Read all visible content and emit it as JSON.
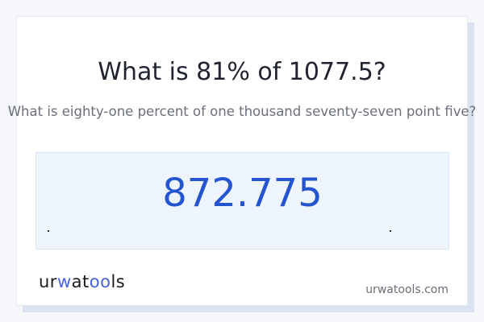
{
  "question": {
    "title": "What is 81% of 1077.5?",
    "subtitle": "What is eighty-one percent of one thousand seventy-seven point five?"
  },
  "result": {
    "value": "872.775"
  },
  "footer": {
    "logo_text": "urwatools",
    "site": "urwatools.com"
  },
  "colors": {
    "accent": "#2454cf",
    "logo_accent": "#4a63db",
    "result_bg": "#eef5fe"
  }
}
